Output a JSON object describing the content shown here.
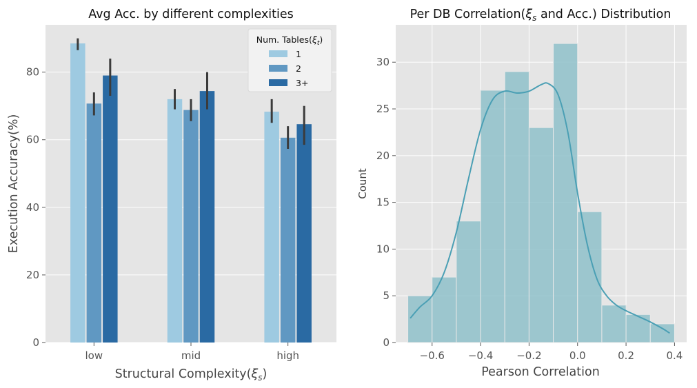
{
  "chart_data": [
    {
      "type": "bar",
      "title": "Avg Acc. by different complexities",
      "xlabel": "Structural Complexity(ξs)",
      "ylabel": "Execution Accuracy(%)",
      "categories": [
        "low",
        "mid",
        "high"
      ],
      "ylim": [
        0,
        94
      ],
      "yticks": [
        0,
        20,
        40,
        60,
        80
      ],
      "grid": true,
      "legend": {
        "title": "Num. Tables(ξt)",
        "position": "top-right"
      },
      "series": [
        {
          "name": "1",
          "color": "#9ecae1",
          "values": [
            88.5,
            72,
            68.3
          ],
          "err_low": [
            86.5,
            69,
            65
          ],
          "err_high": [
            90,
            75,
            72
          ]
        },
        {
          "name": "2",
          "color": "#6098c2",
          "values": [
            70.7,
            68.8,
            60.6
          ],
          "err_low": [
            67.2,
            65.5,
            57.3
          ],
          "err_high": [
            74,
            72,
            64
          ]
        },
        {
          "name": "3+",
          "color": "#2a6aa3",
          "values": [
            79,
            74.4,
            64.6
          ],
          "err_low": [
            73,
            69,
            58.5
          ],
          "err_high": [
            84,
            80,
            70
          ]
        }
      ]
    },
    {
      "type": "histogram",
      "title": "Per DB Correlation(ξs and Acc.) Distribution",
      "xlabel": "Pearson Correlation",
      "ylabel": "Count",
      "xlim": [
        -0.75,
        0.45
      ],
      "ylim": [
        0,
        34
      ],
      "xticks": [
        -0.6,
        -0.4,
        -0.2,
        0.0,
        0.2,
        0.4
      ],
      "xtick_labels": [
        "−0.6",
        "−0.4",
        "−0.2",
        "0.0",
        "0.2",
        "0.4"
      ],
      "yticks": [
        0,
        5,
        10,
        15,
        20,
        25,
        30
      ],
      "grid": true,
      "bar_color": "#8fc1ca",
      "kde_color": "#4a9fb4",
      "bins": [
        {
          "x0": -0.7,
          "x1": -0.6,
          "count": 5
        },
        {
          "x0": -0.6,
          "x1": -0.5,
          "count": 7
        },
        {
          "x0": -0.5,
          "x1": -0.4,
          "count": 13
        },
        {
          "x0": -0.4,
          "x1": -0.3,
          "count": 27
        },
        {
          "x0": -0.3,
          "x1": -0.2,
          "count": 29
        },
        {
          "x0": -0.2,
          "x1": -0.1,
          "count": 23
        },
        {
          "x0": -0.1,
          "x1": 0.0,
          "count": 32
        },
        {
          "x0": 0.0,
          "x1": 0.1,
          "count": 14
        },
        {
          "x0": 0.1,
          "x1": 0.2,
          "count": 4
        },
        {
          "x0": 0.2,
          "x1": 0.3,
          "count": 3
        },
        {
          "x0": 0.3,
          "x1": 0.4,
          "count": 2
        }
      ],
      "kde": [
        [
          -0.69,
          2.6
        ],
        [
          -0.65,
          3.8
        ],
        [
          -0.6,
          5.0
        ],
        [
          -0.55,
          7.5
        ],
        [
          -0.5,
          11.8
        ],
        [
          -0.45,
          17.5
        ],
        [
          -0.4,
          22.8
        ],
        [
          -0.35,
          26.0
        ],
        [
          -0.3,
          26.9
        ],
        [
          -0.25,
          26.7
        ],
        [
          -0.2,
          26.9
        ],
        [
          -0.15,
          27.6
        ],
        [
          -0.12,
          27.7
        ],
        [
          -0.08,
          26.5
        ],
        [
          -0.04,
          22.5
        ],
        [
          0.0,
          16.0
        ],
        [
          0.04,
          10.5
        ],
        [
          0.08,
          6.8
        ],
        [
          0.12,
          5.0
        ],
        [
          0.16,
          4.0
        ],
        [
          0.2,
          3.4
        ],
        [
          0.25,
          2.8
        ],
        [
          0.3,
          2.2
        ],
        [
          0.35,
          1.5
        ],
        [
          0.38,
          1.0
        ]
      ]
    }
  ]
}
